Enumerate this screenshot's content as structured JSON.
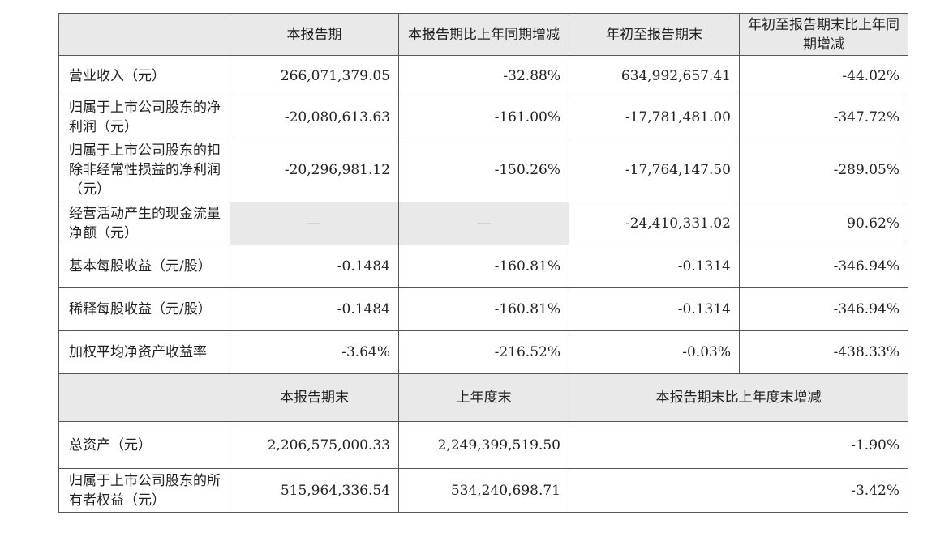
{
  "table": {
    "header": [
      "本报告期",
      "本报告期比上年同期增减",
      "年初至报告期末",
      "年初至报告期末比上年同期增减"
    ],
    "rows": [
      {
        "label": "营业收入（元）",
        "values": [
          "266,071,379.05",
          "-32.88%",
          "634,992,657.41",
          "-44.02%"
        ]
      },
      {
        "label": "归属于上市公司股东的净利润（元）",
        "values": [
          "-20,080,613.63",
          "-161.00%",
          "-17,781,481.00",
          "-347.72%"
        ]
      },
      {
        "label": "归属于上市公司股东的扣除非经常性损益的净利润（元）",
        "values": [
          "-20,296,981.12",
          "-150.26%",
          "-17,764,147.50",
          "-289.05%"
        ]
      },
      {
        "label": "经营活动产生的现金流量净额（元）",
        "values": [
          "—",
          "—",
          "-24,410,331.02",
          "90.62%"
        ]
      },
      {
        "label": "基本每股收益（元/股）",
        "values": [
          "-0.1484",
          "-160.81%",
          "-0.1314",
          "-346.94%"
        ]
      },
      {
        "label": "稀释每股收益（元/股）",
        "values": [
          "-0.1484",
          "-160.81%",
          "-0.1314",
          "-346.94%"
        ]
      },
      {
        "label": "加权平均净资产收益率",
        "values": [
          "-3.64%",
          "-216.52%",
          "-0.03%",
          "-438.33%"
        ]
      }
    ],
    "header2": [
      "本报告期末",
      "上年度末",
      "本报告期末比上年度末增减"
    ],
    "rows2": [
      {
        "label": "总资产（元）",
        "values": [
          "2,206,575,000.33",
          "2,249,399,519.50",
          "-1.90%"
        ]
      },
      {
        "label": "归属于上市公司股东的所有者权益（元）",
        "values": [
          "515,964,336.54",
          "534,240,698.71",
          "-3.42%"
        ]
      }
    ]
  }
}
